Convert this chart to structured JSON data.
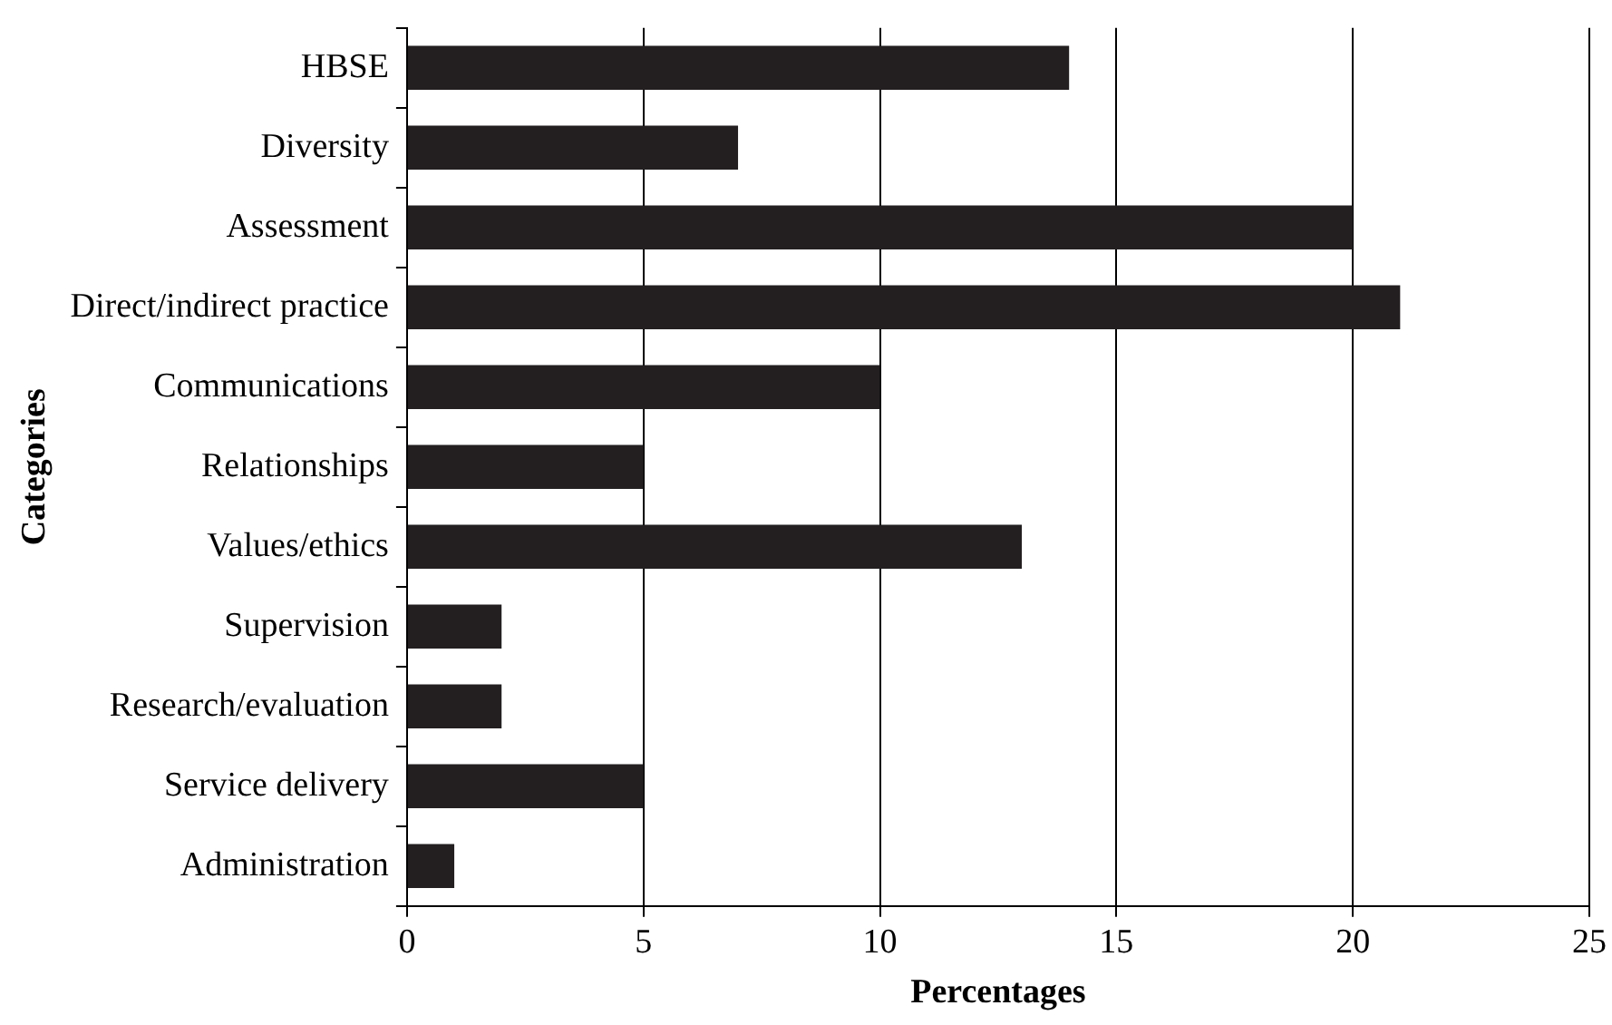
{
  "chart_data": {
    "type": "bar",
    "orientation": "horizontal",
    "xlabel": "Percentages",
    "ylabel": "Categories",
    "categories": [
      "HBSE",
      "Diversity",
      "Assessment",
      "Direct/indirect practice",
      "Communications",
      "Relationships",
      "Values/ethics",
      "Supervision",
      "Research/evaluation",
      "Service delivery",
      "Administration"
    ],
    "values": [
      14,
      7,
      20,
      21,
      10,
      5,
      13,
      2,
      2,
      5,
      1
    ],
    "color": "#231f20",
    "xlim": [
      0,
      25
    ],
    "xticks": [
      0,
      5,
      10,
      15,
      20,
      25
    ],
    "grid": "x",
    "legend": false
  }
}
